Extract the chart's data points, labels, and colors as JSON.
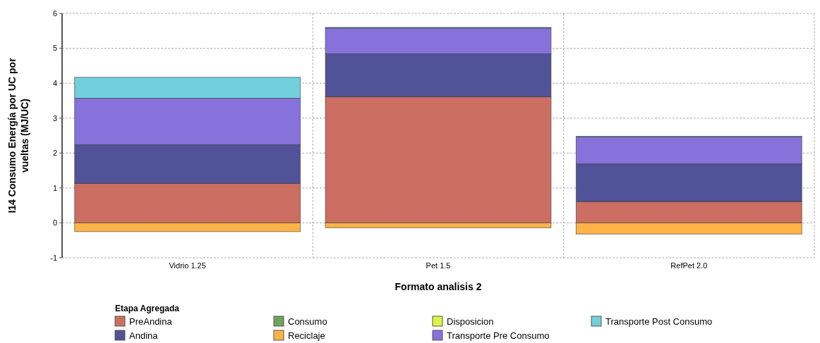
{
  "chart_data": {
    "type": "bar",
    "stacked": true,
    "xlabel": "Formato analisis 2",
    "ylabel": "I14 Consumo Energía por UC por vueltas (MJ/UC)",
    "legend_title": "Etapa Agregada",
    "legend": "bottom",
    "grid": true,
    "categories": [
      "Vidrio 1.25",
      "Pet 1.5",
      "RefPet 2.0"
    ],
    "ylim": [
      -1,
      6
    ],
    "yticks": [
      -1,
      0,
      1,
      2,
      3,
      4,
      5,
      6
    ],
    "series": [
      {
        "name": "PreAndina",
        "color": "#cd6e63",
        "values": [
          1.13,
          3.61,
          0.61
        ]
      },
      {
        "name": "Andina",
        "color": "#515399",
        "values": [
          1.11,
          1.23,
          1.08
        ]
      },
      {
        "name": "Consumo",
        "color": "#6fa35c",
        "values": [
          0,
          0,
          0
        ]
      },
      {
        "name": "Reciclaje",
        "color": "#ffb347",
        "values": [
          -0.25,
          -0.14,
          -0.32
        ]
      },
      {
        "name": "Disposicion",
        "color": "#dcf542",
        "values": [
          0,
          0,
          0
        ]
      },
      {
        "name": "Transporte Pre Consumo",
        "color": "#8772db",
        "values": [
          1.33,
          0.74,
          0.77
        ]
      },
      {
        "name": "Transporte Post Consumo",
        "color": "#72d0dd",
        "values": [
          0.6,
          0.02,
          0.02
        ]
      }
    ]
  }
}
